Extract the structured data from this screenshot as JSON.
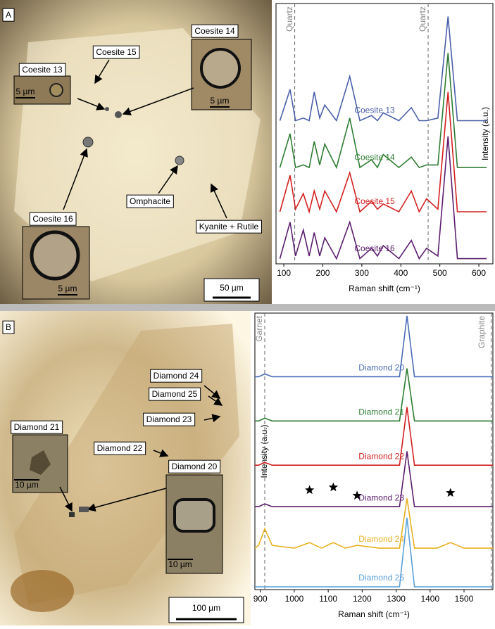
{
  "photos": [
    {
      "panel": "A",
      "labels": [
        "Coesite 15",
        "Coesite 14",
        "Coesite 13",
        "Coesite 16",
        "Omphacite",
        "Kyanite + Rutile"
      ],
      "inset_scales": [
        "5 µm",
        "5 µm",
        "5 µm"
      ],
      "scale_bar": "50 µm"
    },
    {
      "panel": "B",
      "labels": [
        "Diamond 24",
        "Diamond 25",
        "Diamond 23",
        "Diamond 22",
        "Diamond 21",
        "Diamond 20"
      ],
      "inset_scales": [
        "10 µm",
        "10 µm"
      ],
      "scale_bar": "100 µm"
    }
  ],
  "chart_data": [
    {
      "type": "line",
      "x_label": "Raman shift (cm⁻¹)",
      "y_label": "Intensity (a.u.)",
      "xlim": [
        80,
        636
      ],
      "xticks": [
        100,
        200,
        300,
        400,
        500,
        600
      ],
      "ylim": [
        0,
        100
      ],
      "reference_lines": [
        {
          "label": "Quartz",
          "x": 128
        },
        {
          "label": "Quartz",
          "x": 470
        }
      ],
      "x": [
        90,
        116,
        130,
        150,
        165,
        178,
        192,
        205,
        235,
        269,
        295,
        325,
        340,
        355,
        395,
        427,
        447,
        466,
        495,
        521,
        545,
        620
      ],
      "series": [
        {
          "name": "Coesite 13",
          "color": "#4a5fa8",
          "values": [
            55,
            67,
            55,
            56,
            55,
            66,
            56,
            61,
            55,
            72,
            55,
            57,
            55,
            58,
            55,
            60,
            55,
            55,
            56,
            95,
            55,
            55
          ]
        },
        {
          "name": "Coesite 14",
          "color": "#2e7d32",
          "values": [
            37,
            50,
            37,
            38,
            37,
            47,
            38,
            46,
            37,
            56,
            37,
            40,
            37,
            42,
            37,
            41,
            37,
            38,
            38,
            81,
            37,
            37
          ]
        },
        {
          "name": "Coesite 15",
          "color": "#d32020",
          "values": [
            20,
            34,
            21,
            27,
            20,
            28,
            21,
            28,
            20,
            35,
            20,
            24,
            21,
            23,
            20,
            28,
            20,
            25,
            21,
            66,
            20,
            20
          ]
        },
        {
          "name": "Coesite 16",
          "color": "#5b1e6e",
          "values": [
            2,
            16,
            3,
            13,
            3,
            12,
            3,
            10,
            2,
            16,
            2,
            6,
            3,
            7,
            2,
            9,
            2,
            6,
            3,
            49,
            2,
            2
          ]
        }
      ]
    },
    {
      "type": "line",
      "x_label": "Raman shift (cm⁻¹)",
      "y_label": "Intensity (a.u.)",
      "xlim": [
        884,
        1585
      ],
      "xticks": [
        900,
        1000,
        1100,
        1200,
        1300,
        1400,
        1500
      ],
      "ylim": [
        0,
        100
      ],
      "reference_lines": [
        {
          "label": "Garnet",
          "x": 913
        },
        {
          "label": "Graphite",
          "x": 1580
        }
      ],
      "x": [
        884,
        895,
        913,
        935,
        1000,
        1045,
        1080,
        1115,
        1150,
        1185,
        1250,
        1310,
        1332,
        1354,
        1420,
        1460,
        1500,
        1585
      ],
      "series": [
        {
          "name": "Diamond 20",
          "color": "#4a6bb5",
          "values": [
            77,
            77,
            78,
            77,
            77,
            77,
            77,
            77,
            77,
            77,
            77,
            77,
            99,
            77,
            77,
            77,
            77,
            77
          ]
        },
        {
          "name": "Diamond 21",
          "color": "#2e7d32",
          "values": [
            61,
            61,
            62,
            61,
            61,
            61,
            61,
            61,
            61,
            61,
            61,
            61,
            80,
            61,
            61,
            61,
            61,
            61
          ]
        },
        {
          "name": "Diamond 22",
          "color": "#d32020",
          "values": [
            45,
            45,
            46,
            45,
            45,
            45,
            45,
            45,
            45,
            45,
            45,
            45,
            66,
            45,
            45,
            45,
            45,
            45
          ]
        },
        {
          "name": "Diamond 23",
          "color": "#5b1e6e",
          "values": [
            30,
            30,
            31,
            30,
            30,
            30,
            30,
            30,
            30,
            30,
            30,
            30,
            50,
            30,
            30,
            30,
            30,
            30
          ]
        },
        {
          "name": "Diamond 24",
          "color": "#e8b020",
          "values": [
            15,
            16,
            22,
            16,
            15,
            17,
            15,
            17,
            15,
            16,
            15,
            15,
            33,
            15,
            15,
            17,
            15,
            15
          ]
        },
        {
          "name": "Diamond 25",
          "color": "#5aa0d8",
          "values": [
            1,
            1,
            1,
            1,
            1,
            1,
            1,
            1,
            1,
            1,
            1,
            1,
            26,
            1,
            1,
            1,
            1,
            1
          ]
        }
      ],
      "star_markers": {
        "x": [
          1045,
          1115,
          1185,
          1460
        ],
        "y": [
          36,
          37,
          34,
          35
        ]
      }
    }
  ]
}
